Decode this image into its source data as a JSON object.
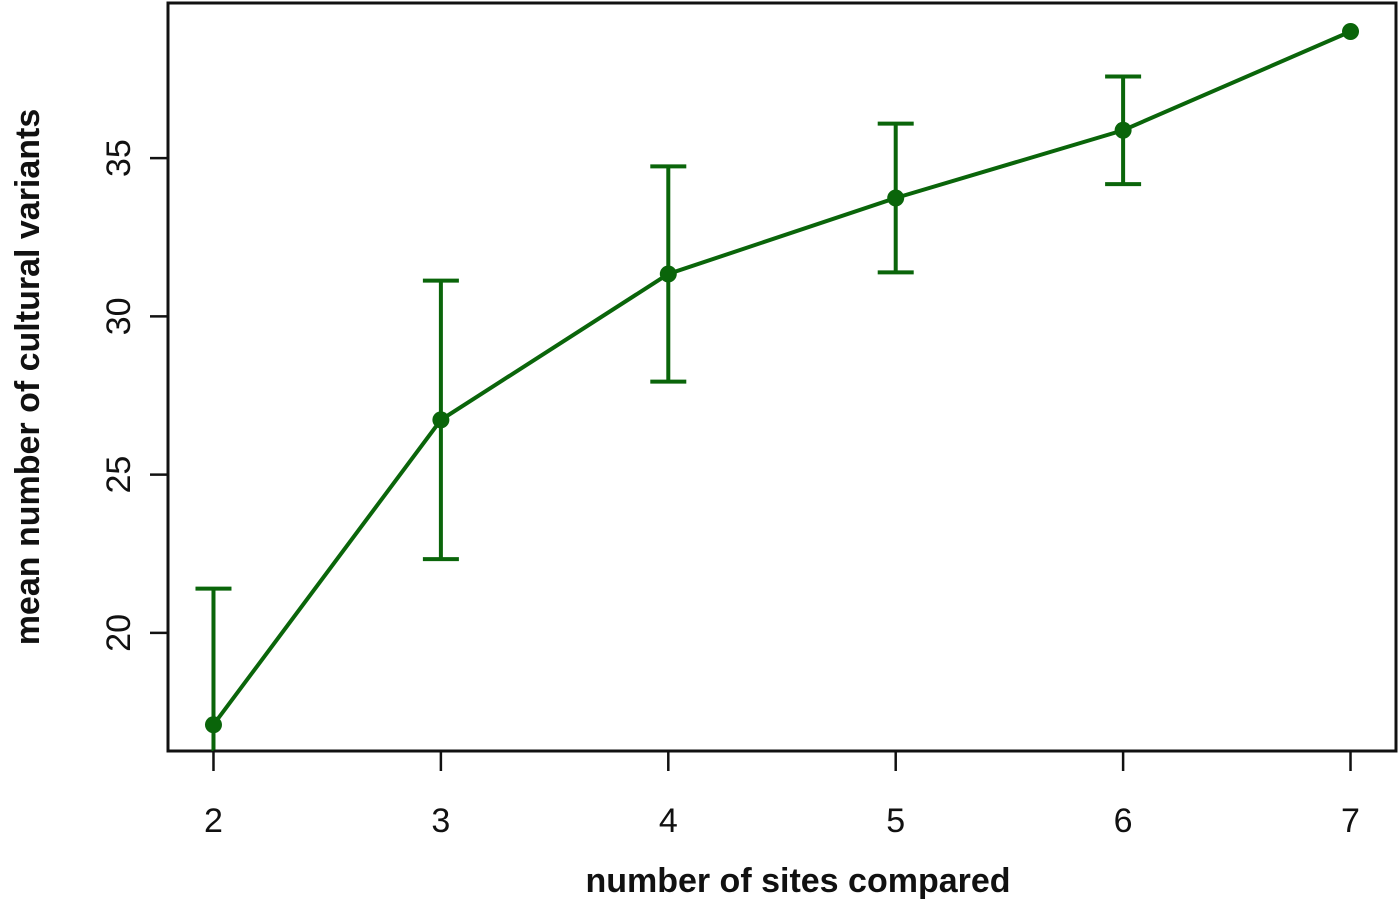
{
  "chart_data": {
    "type": "line",
    "xlabel": "number of sites compared",
    "ylabel": "mean number of cultural variants",
    "x": [
      2,
      3,
      4,
      5,
      6,
      7
    ],
    "values": [
      17.1,
      26.73,
      31.34,
      33.74,
      35.88,
      39.0
    ],
    "errors": [
      4.3,
      4.4,
      3.4,
      2.35,
      1.7,
      null
    ],
    "color": "#0a650a",
    "xlim": [
      1.8,
      7.2
    ],
    "xticks": [
      2,
      3,
      4,
      5,
      6,
      7
    ],
    "ylim": [
      16.27,
      39.9
    ],
    "yticks": [
      20,
      25,
      30,
      35
    ]
  }
}
